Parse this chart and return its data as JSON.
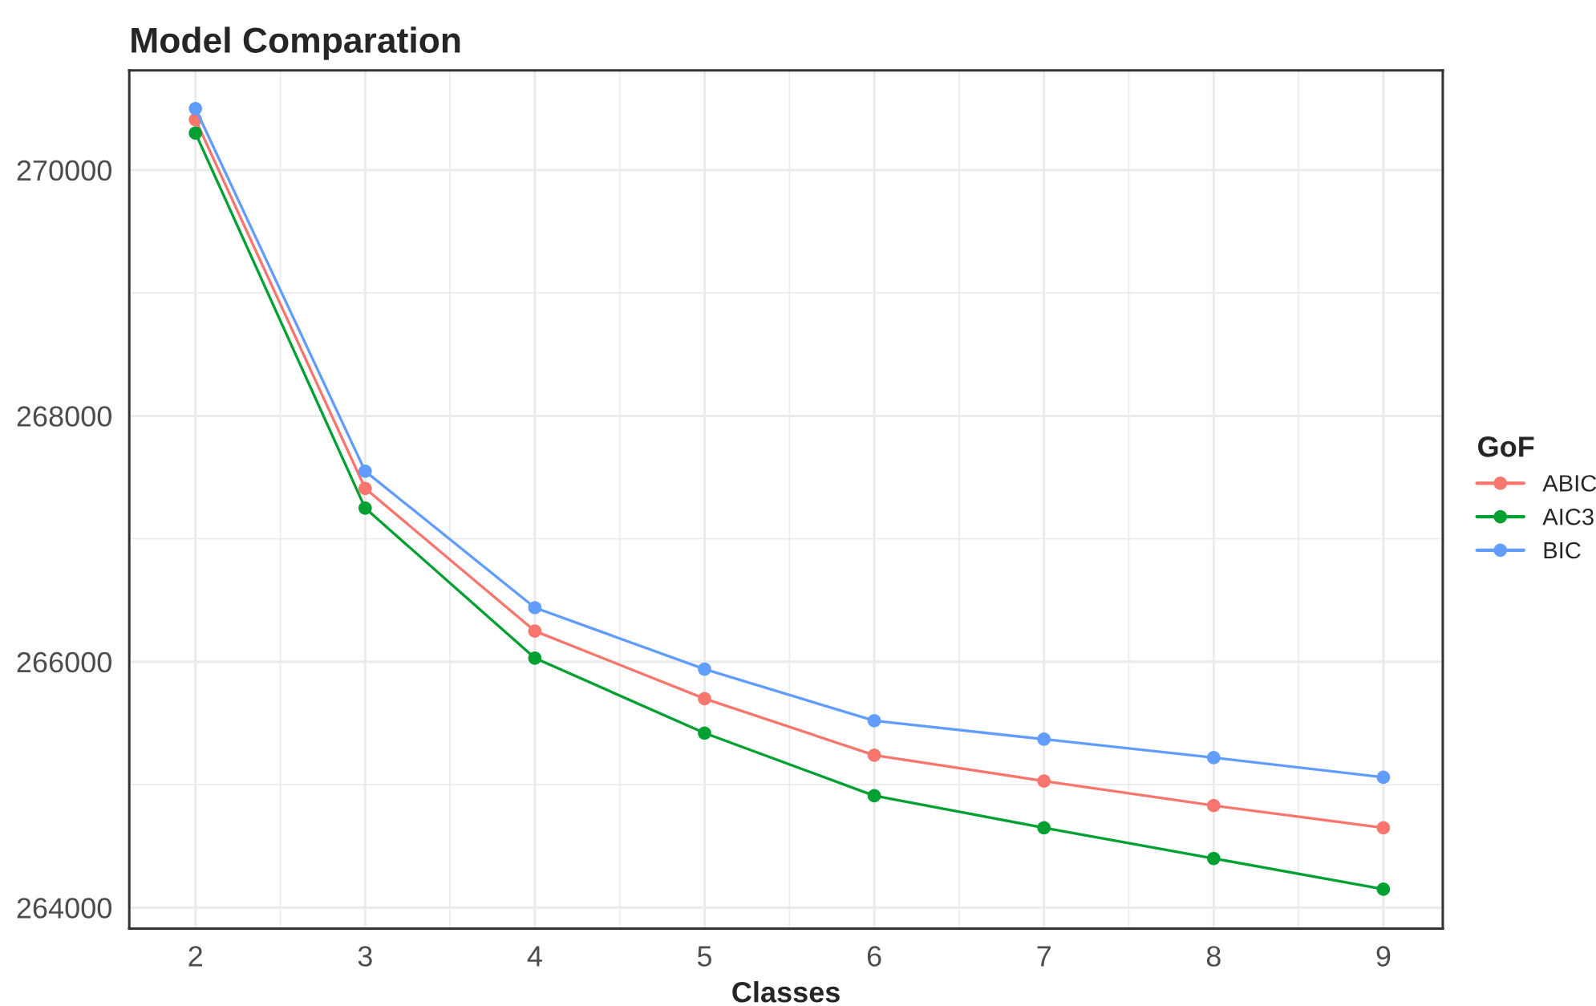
{
  "chart_data": {
    "type": "line",
    "title": "Model Comparation",
    "xlabel": "Classes",
    "legend_title": "GoF",
    "x": [
      2,
      3,
      4,
      5,
      6,
      7,
      8,
      9
    ],
    "series": [
      {
        "name": "ABIC",
        "color": "#f8766d",
        "values": [
          270410,
          267410,
          266250,
          265700,
          265240,
          265030,
          264830,
          264650
        ]
      },
      {
        "name": "AIC3",
        "color": "#00a033",
        "values": [
          270300,
          267250,
          266030,
          265420,
          264910,
          264650,
          264400,
          264150
        ]
      },
      {
        "name": "BIC",
        "color": "#619cff",
        "values": [
          270500,
          267550,
          266440,
          265940,
          265520,
          265370,
          265220,
          265060
        ]
      }
    ],
    "xlim": [
      1.61,
      9.35
    ],
    "ylim": [
      263830,
      270810
    ],
    "xticks": [
      2,
      3,
      4,
      5,
      6,
      7,
      8,
      9
    ],
    "yticks": [
      264000,
      266000,
      268000,
      270000
    ],
    "grid": true,
    "legend": "right",
    "marker": "circle",
    "line_style": "solid"
  }
}
